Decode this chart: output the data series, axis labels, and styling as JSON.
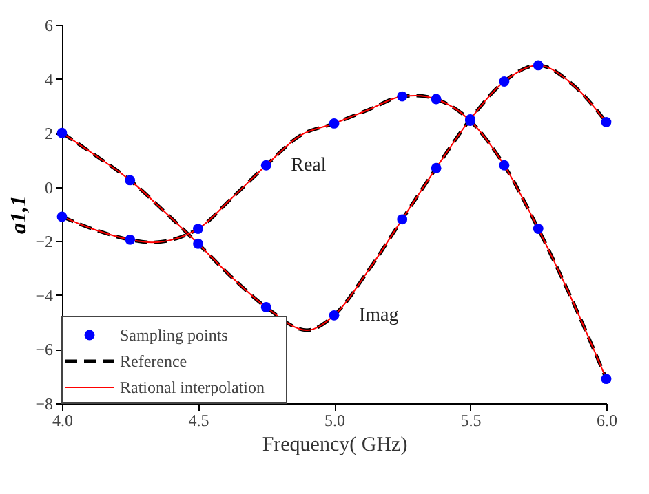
{
  "chart_data": {
    "type": "line",
    "xlabel": "Frequency( GHz)",
    "ylabel": "a1,1",
    "xlim": [
      4.0,
      6.0
    ],
    "ylim": [
      -8,
      6
    ],
    "xticks": [
      {
        "value": 4.0,
        "label": "4.0"
      },
      {
        "value": 4.5,
        "label": "4.5"
      },
      {
        "value": 5.0,
        "label": "5.0"
      },
      {
        "value": 5.5,
        "label": "5.5"
      },
      {
        "value": 6.0,
        "label": "6.0"
      }
    ],
    "yticks": [
      -8,
      -6,
      -4,
      -2,
      0,
      2,
      4,
      6
    ],
    "grid": false,
    "legend": "bottom left",
    "annotations": [
      {
        "text": "Real",
        "x": 4.75,
        "y": 0.8
      },
      {
        "text": "Imag",
        "x": 5.0,
        "y": -4.75
      }
    ],
    "series": [
      {
        "name": "Reference",
        "type": "line",
        "color": "#000000",
        "line_style": "dashed",
        "x": [
          4.0,
          4.125,
          4.25,
          4.33,
          4.5,
          4.625,
          4.75,
          4.875,
          5.0,
          5.125,
          5.25,
          5.3,
          5.375,
          5.5,
          5.625,
          5.75,
          5.875,
          6.0
        ],
        "values": [
          -1.1,
          -1.6,
          -1.95,
          -2.05,
          -1.55,
          -0.4,
          0.8,
          1.9,
          2.35,
          2.85,
          3.35,
          3.38,
          3.25,
          2.45,
          0.8,
          -1.55,
          -4.2,
          -7.1
        ]
      },
      {
        "type": "line",
        "color": "#000000",
        "line_style": "dashed",
        "x": [
          4.0,
          4.125,
          4.25,
          4.375,
          4.5,
          4.625,
          4.75,
          4.9,
          5.0,
          5.125,
          5.25,
          5.375,
          5.5,
          5.625,
          5.75,
          5.875,
          6.0
        ],
        "values": [
          2.0,
          1.15,
          0.25,
          -0.9,
          -2.1,
          -3.35,
          -4.45,
          -5.3,
          -4.75,
          -3.1,
          -1.2,
          0.7,
          2.5,
          3.9,
          4.5,
          3.8,
          2.4
        ]
      },
      {
        "name": "Rational interpolation",
        "type": "line",
        "color": "#ff0000",
        "line_style": "solid",
        "x": [
          4.0,
          4.125,
          4.25,
          4.33,
          4.5,
          4.625,
          4.75,
          4.875,
          5.0,
          5.125,
          5.25,
          5.3,
          5.375,
          5.5,
          5.625,
          5.75,
          5.875,
          6.0
        ],
        "values": [
          -1.1,
          -1.6,
          -1.95,
          -2.05,
          -1.55,
          -0.4,
          0.8,
          1.9,
          2.35,
          2.85,
          3.35,
          3.38,
          3.25,
          2.45,
          0.8,
          -1.55,
          -4.2,
          -7.1
        ]
      },
      {
        "type": "line",
        "color": "#ff0000",
        "line_style": "solid",
        "x": [
          4.0,
          4.125,
          4.25,
          4.375,
          4.5,
          4.625,
          4.75,
          4.9,
          5.0,
          5.125,
          5.25,
          5.375,
          5.5,
          5.625,
          5.75,
          5.875,
          6.0
        ],
        "values": [
          2.0,
          1.15,
          0.25,
          -0.9,
          -2.1,
          -3.35,
          -4.45,
          -5.3,
          -4.75,
          -3.1,
          -1.2,
          0.7,
          2.5,
          3.9,
          4.5,
          3.8,
          2.4
        ]
      },
      {
        "name": "Sampling points",
        "type": "scatter",
        "color": "#0000ff",
        "marker": "circle",
        "x": [
          4.0,
          4.25,
          4.5,
          4.75,
          5.0,
          5.25,
          5.375,
          5.5,
          5.625,
          5.75,
          6.0,
          4.0,
          4.25,
          4.5,
          4.75,
          5.0,
          5.25,
          5.375,
          5.5,
          5.625,
          5.75,
          6.0
        ],
        "values": [
          -1.1,
          -1.95,
          -1.55,
          0.8,
          2.35,
          3.35,
          3.25,
          2.45,
          0.8,
          -1.55,
          -7.1,
          2.0,
          0.25,
          -2.1,
          -4.45,
          -4.75,
          -1.2,
          0.7,
          2.5,
          3.9,
          4.5,
          2.4
        ]
      }
    ]
  }
}
